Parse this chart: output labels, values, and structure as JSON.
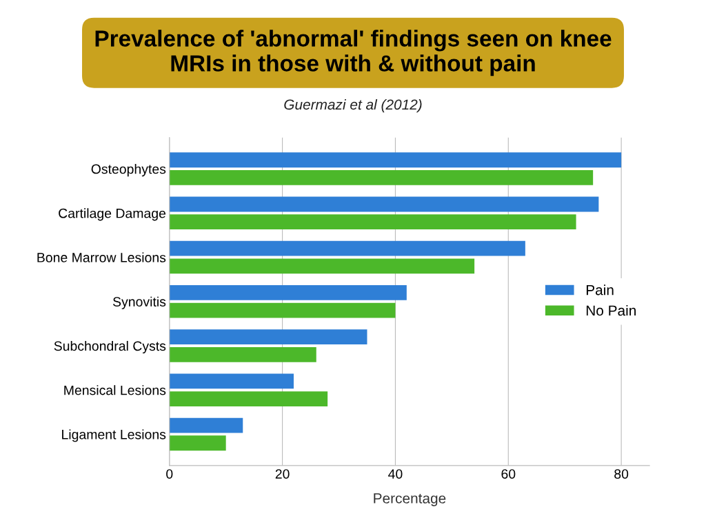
{
  "chart_data": {
    "type": "bar",
    "orientation": "horizontal",
    "title": "Prevalence of 'abnormal' findings seen on knee\nMRIs in those with & without pain",
    "subtitle": "Guermazi et al (2012)",
    "xlabel": "Percentage",
    "categories": [
      "Osteophytes",
      "Cartilage Damage",
      "Bone Marrow Lesions",
      "Synovitis",
      "Subchondral Cysts",
      "Mensical Lesions",
      "Ligament Lesions"
    ],
    "series": [
      {
        "name": "Pain",
        "color": "#2f7fd6",
        "values": [
          80,
          76,
          63,
          42,
          35,
          22,
          13
        ]
      },
      {
        "name": "No Pain",
        "color": "#4cb82a",
        "values": [
          75,
          72,
          54,
          40,
          26,
          28,
          10
        ]
      }
    ],
    "xlim": [
      0,
      85
    ],
    "xticks": [
      0,
      20,
      40,
      60,
      80
    ],
    "grid": "x",
    "legend": "right"
  }
}
